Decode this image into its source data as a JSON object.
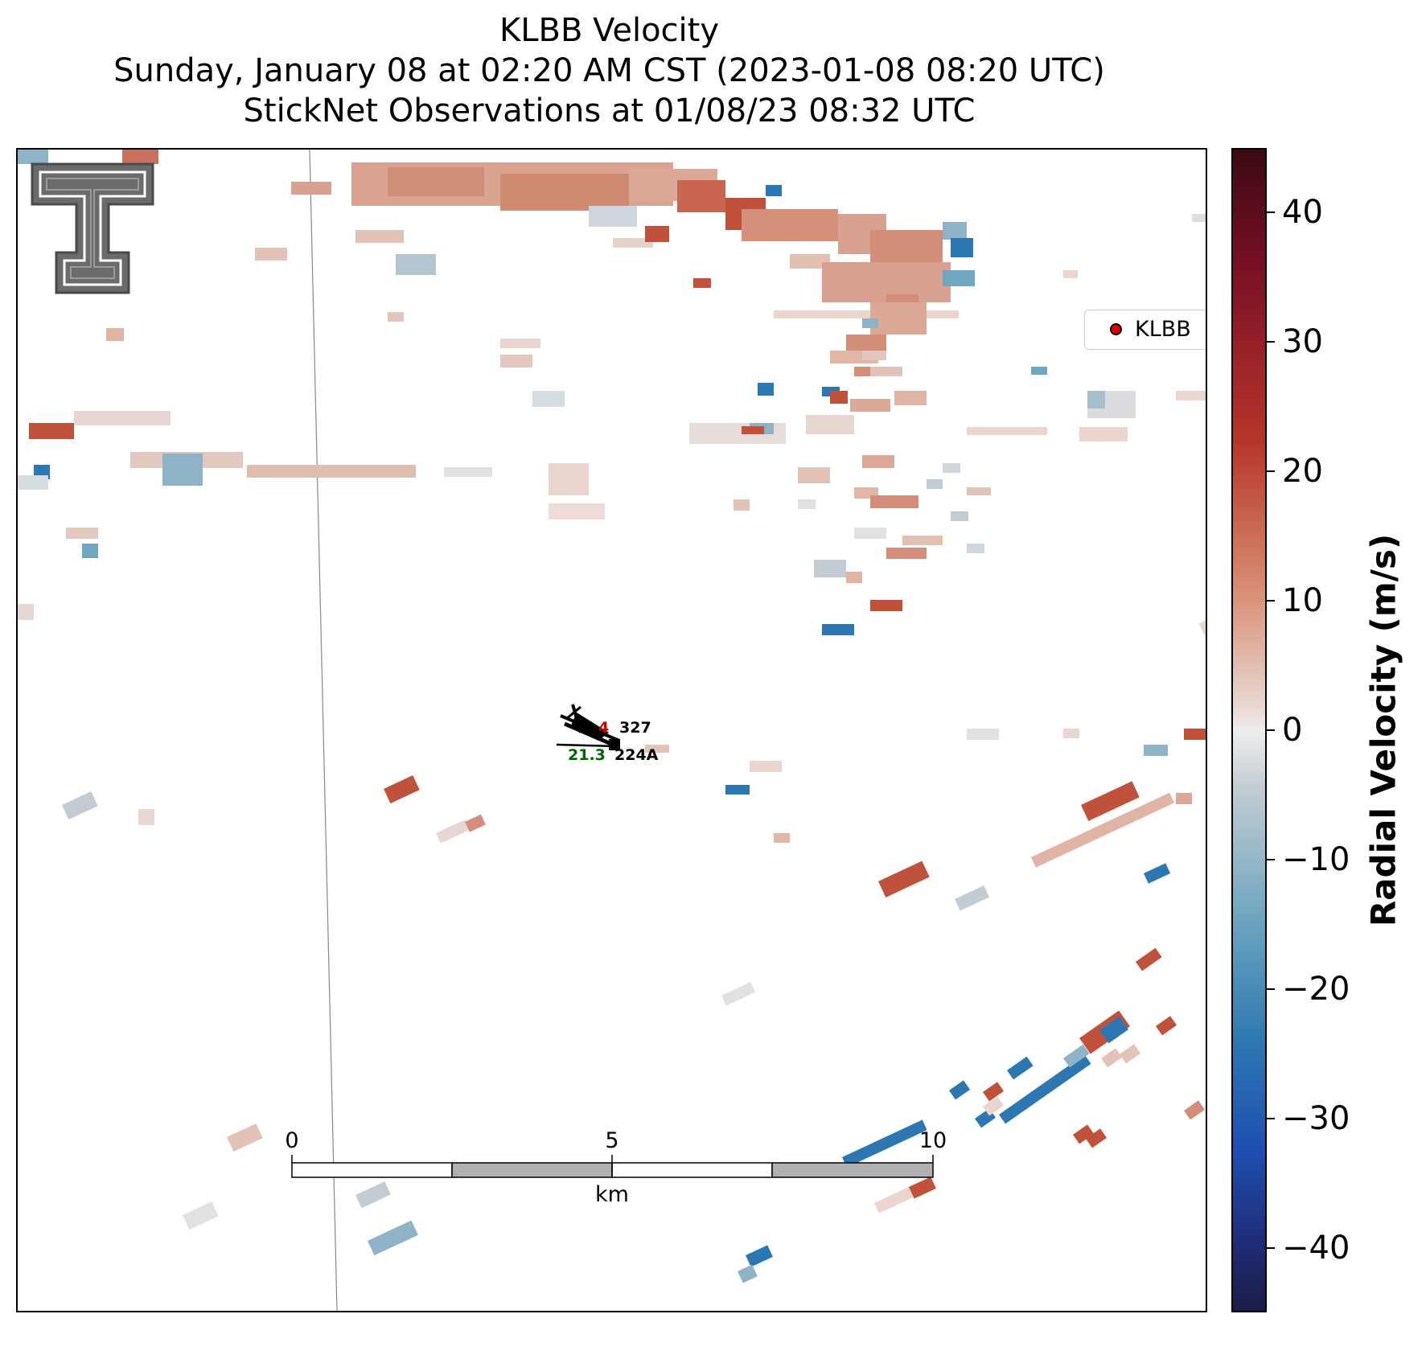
{
  "header": {
    "title": "KLBB Velocity",
    "subtitle": "Sunday, January 08 at 02:20 AM CST (2023-01-08 08:20 UTC)",
    "obs_line": "StickNet Observations at 01/08/23 08:32 UTC"
  },
  "legend": {
    "label": "KLBB",
    "marker_color": "#e00000"
  },
  "colorbar": {
    "title": "Radial Velocity (m/s)",
    "ticks": [
      "40",
      "30",
      "20",
      "10",
      "0",
      "−10",
      "−20",
      "−30",
      "−40"
    ],
    "range": [
      -45,
      45
    ]
  },
  "scalebar": {
    "ticks": [
      "0",
      "5",
      "10"
    ],
    "unit": "km"
  },
  "stations": [
    {
      "id": "327",
      "value": "4",
      "value_color": "#cc0000"
    },
    {
      "id": "224A",
      "value": "21.3",
      "value_color": "#006400"
    }
  ],
  "logo": {
    "name": "texas-tech-double-t-logo"
  },
  "colors": {
    "inbound": "#2c77b1",
    "outbound": "#c0513a",
    "near_zero": "#e9e2df"
  }
}
